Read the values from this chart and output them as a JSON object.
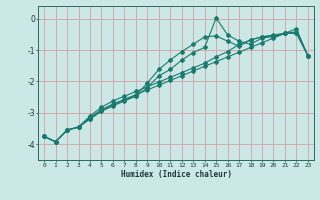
{
  "xlabel": "Humidex (Indice chaleur)",
  "xlim": [
    -0.5,
    23.5
  ],
  "ylim": [
    -4.5,
    0.4
  ],
  "bg_color": "#cce8e6",
  "line_color": "#1a7a6e",
  "grid_color": "#d4a0a0",
  "xticks": [
    0,
    1,
    2,
    3,
    4,
    5,
    6,
    7,
    8,
    9,
    10,
    11,
    12,
    13,
    14,
    15,
    16,
    17,
    18,
    19,
    20,
    21,
    22,
    23
  ],
  "yticks": [
    0,
    -1,
    -2,
    -3,
    -4
  ],
  "x": [
    0,
    1,
    2,
    3,
    4,
    5,
    6,
    7,
    8,
    9,
    10,
    11,
    12,
    13,
    14,
    15,
    16,
    17,
    18,
    19,
    20,
    21,
    22,
    23
  ],
  "y_straight": [
    -3.75,
    -3.92,
    -3.55,
    -3.45,
    -3.15,
    -2.9,
    -2.72,
    -2.57,
    -2.42,
    -2.27,
    -2.12,
    -1.97,
    -1.82,
    -1.67,
    -1.52,
    -1.37,
    -1.22,
    -1.07,
    -0.92,
    -0.77,
    -0.62,
    -0.47,
    -0.32,
    -1.18
  ],
  "y_jagged": [
    -3.75,
    -3.92,
    -3.55,
    -3.45,
    -3.2,
    -2.95,
    -2.78,
    -2.62,
    -2.47,
    -2.2,
    -1.82,
    -1.62,
    -1.32,
    -1.08,
    -0.92,
    0.02,
    -0.52,
    -0.72,
    -0.82,
    -0.62,
    -0.57,
    -0.47,
    -0.47,
    -1.18
  ],
  "y_mid1": [
    -3.75,
    -3.92,
    -3.55,
    -3.45,
    -3.18,
    -2.92,
    -2.75,
    -2.6,
    -2.45,
    -2.05,
    -1.62,
    -1.32,
    -1.05,
    -0.82,
    -0.58,
    -0.55,
    -0.72,
    -0.88,
    -0.68,
    -0.58,
    -0.55,
    -0.47,
    -0.45,
    -1.18
  ],
  "y_mid2": [
    -3.75,
    -3.92,
    -3.55,
    -3.45,
    -3.1,
    -2.82,
    -2.62,
    -2.47,
    -2.32,
    -2.17,
    -2.02,
    -1.87,
    -1.72,
    -1.57,
    -1.42,
    -1.22,
    -1.05,
    -0.82,
    -0.68,
    -0.58,
    -0.52,
    -0.47,
    -0.42,
    -1.18
  ]
}
